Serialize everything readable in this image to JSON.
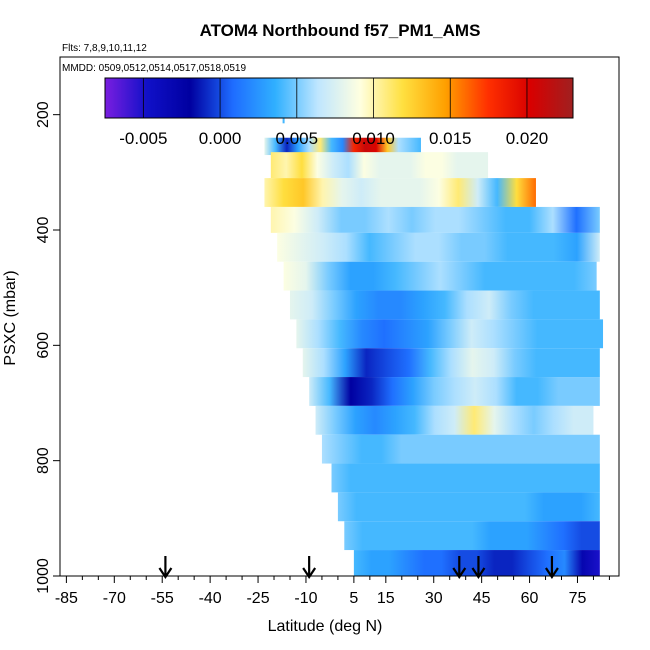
{
  "chart_data": {
    "type": "heatmap",
    "title": "ATOM4 Northbound f57_PM1_AMS",
    "flights_label": "Flts: 7,8,9,10,11,12",
    "dates_label": "MMDD: 0509,0512,0514,0517,0518,0519",
    "xlabel": "Latitude (deg N)",
    "ylabel": "PSXC (mbar)",
    "xlim": [
      -87,
      88
    ],
    "ylim": [
      1000,
      100
    ],
    "x_ticks_labeled": [
      -85,
      -70,
      -55,
      -40,
      -25,
      -10,
      5,
      15,
      30,
      45,
      60,
      75
    ],
    "x_ticks_minor_step": 5,
    "y_ticks": [
      200,
      400,
      600,
      800,
      1000
    ],
    "colorbar": {
      "range": [
        -0.0075,
        0.023
      ],
      "ticks": [
        -0.005,
        0.0,
        0.005,
        0.01,
        0.015,
        0.02
      ],
      "tick_labels": [
        "-0.005",
        "0.000",
        "0.005",
        "0.010",
        "0.015",
        "0.020"
      ],
      "colors": [
        "#7a1ee0",
        "#1010c8",
        "#0000a0",
        "#1e6cff",
        "#30b0ff",
        "#bfe6ff",
        "#ffffe0",
        "#ffe040",
        "#ffa000",
        "#ff3000",
        "#d80000",
        "#a02020"
      ]
    },
    "arrows_latitude": [
      -54,
      -9,
      38,
      44,
      67
    ],
    "rows": [
      {
        "p_top": 240,
        "p_bot": 270,
        "lat_min": -23,
        "lat_max": 26,
        "values": [
          0.008,
          0.004,
          -0.001,
          0.003,
          0.006,
          0.011,
          0.004,
          0.002,
          0.018,
          0.021,
          0.02,
          0.013,
          0.006,
          0.005,
          0.004
        ]
      },
      {
        "p_top": 265,
        "p_bot": 310,
        "lat_min": -21,
        "lat_max": 47,
        "values": [
          0.011,
          0.01,
          0.012,
          0.009,
          0.007,
          0.006,
          0.009,
          0.008,
          0.008,
          0.008,
          0.009,
          0.009,
          0.008,
          0.008,
          0.008
        ]
      },
      {
        "p_top": 310,
        "p_bot": 360,
        "lat_min": -23,
        "lat_max": 62,
        "values": [
          0.01,
          0.012,
          0.013,
          0.01,
          0.008,
          0.007,
          0.008,
          0.008,
          0.008,
          0.009,
          0.011,
          0.007,
          0.004,
          0.012,
          0.016
        ]
      },
      {
        "p_top": 360,
        "p_bot": 405,
        "lat_min": -21,
        "lat_max": 82,
        "values": [
          0.01,
          0.009,
          0.007,
          0.005,
          0.005,
          0.006,
          0.005,
          0.006,
          0.006,
          0.005,
          0.004,
          0.004,
          0.006,
          0.001,
          0.005
        ]
      },
      {
        "p_top": 405,
        "p_bot": 455,
        "lat_min": -19,
        "lat_max": 82,
        "values": [
          0.009,
          0.008,
          0.007,
          0.006,
          0.004,
          0.005,
          0.006,
          0.006,
          0.005,
          0.005,
          0.004,
          0.004,
          0.004,
          0.003,
          0.007
        ]
      },
      {
        "p_top": 455,
        "p_bot": 505,
        "lat_min": -17,
        "lat_max": 81,
        "values": [
          0.009,
          0.008,
          0.005,
          0.003,
          0.003,
          0.004,
          0.005,
          0.006,
          0.005,
          0.004,
          0.004,
          0.004,
          0.004,
          0.004,
          0.005
        ]
      },
      {
        "p_top": 505,
        "p_bot": 555,
        "lat_min": -15,
        "lat_max": 82,
        "values": [
          0.008,
          0.007,
          0.005,
          0.003,
          0.002,
          0.002,
          0.003,
          0.004,
          0.006,
          0.007,
          0.005,
          0.004,
          0.004,
          0.004,
          0.004
        ]
      },
      {
        "p_top": 555,
        "p_bot": 605,
        "lat_min": -13,
        "lat_max": 83,
        "values": [
          0.008,
          0.006,
          0.004,
          0.002,
          0.001,
          0.002,
          0.003,
          0.005,
          0.007,
          0.006,
          0.005,
          0.004,
          0.004,
          0.004,
          0.004
        ]
      },
      {
        "p_top": 605,
        "p_bot": 655,
        "lat_min": -11,
        "lat_max": 82,
        "values": [
          0.008,
          0.006,
          0.003,
          -0.001,
          0.0,
          0.001,
          0.004,
          0.006,
          0.008,
          0.007,
          0.005,
          0.004,
          0.004,
          0.004,
          0.004
        ]
      },
      {
        "p_top": 655,
        "p_bot": 705,
        "lat_min": -9,
        "lat_max": 82,
        "values": [
          0.007,
          0.004,
          -0.002,
          -0.001,
          0.001,
          0.003,
          0.005,
          0.006,
          0.007,
          0.006,
          0.004,
          0.004,
          0.005,
          0.005,
          0.005
        ]
      },
      {
        "p_top": 705,
        "p_bot": 755,
        "lat_min": -7,
        "lat_max": 80,
        "values": [
          0.007,
          0.005,
          0.003,
          0.002,
          0.003,
          0.004,
          0.006,
          0.007,
          0.011,
          0.008,
          0.006,
          0.005,
          0.006,
          0.007,
          0.007
        ]
      },
      {
        "p_top": 755,
        "p_bot": 805,
        "lat_min": -5,
        "lat_max": 82,
        "values": [
          0.006,
          0.005,
          0.004,
          0.004,
          0.005,
          0.005,
          0.005,
          0.005,
          0.005,
          0.005,
          0.005,
          0.005,
          0.005,
          0.005,
          0.005
        ]
      },
      {
        "p_top": 805,
        "p_bot": 855,
        "lat_min": -2,
        "lat_max": 82,
        "values": [
          0.005,
          0.004,
          0.004,
          0.004,
          0.004,
          0.004,
          0.004,
          0.004,
          0.004,
          0.004,
          0.004,
          0.004,
          0.004,
          0.004,
          0.004
        ]
      },
      {
        "p_top": 855,
        "p_bot": 905,
        "lat_min": 0,
        "lat_max": 82,
        "values": [
          0.005,
          0.004,
          0.004,
          0.004,
          0.004,
          0.004,
          0.004,
          0.004,
          0.004,
          0.004,
          0.004,
          0.003,
          0.003,
          0.003,
          0.004
        ]
      },
      {
        "p_top": 905,
        "p_bot": 955,
        "lat_min": 2,
        "lat_max": 82,
        "values": [
          0.005,
          0.004,
          0.004,
          0.004,
          0.004,
          0.004,
          0.004,
          0.004,
          0.003,
          0.003,
          0.003,
          0.002,
          0.001,
          0.0,
          0.0
        ]
      },
      {
        "p_top": 955,
        "p_bot": 1005,
        "lat_min": 5,
        "lat_max": 82,
        "values": [
          0.004,
          0.003,
          0.003,
          0.002,
          0.001,
          0.001,
          0.0,
          0.0,
          -0.001,
          -0.001,
          0.0,
          0.001,
          0.002,
          -0.003,
          -0.005
        ]
      }
    ],
    "spike": {
      "lat": -17,
      "p_top": 185,
      "p_bot": 215,
      "value": 0.004
    }
  }
}
